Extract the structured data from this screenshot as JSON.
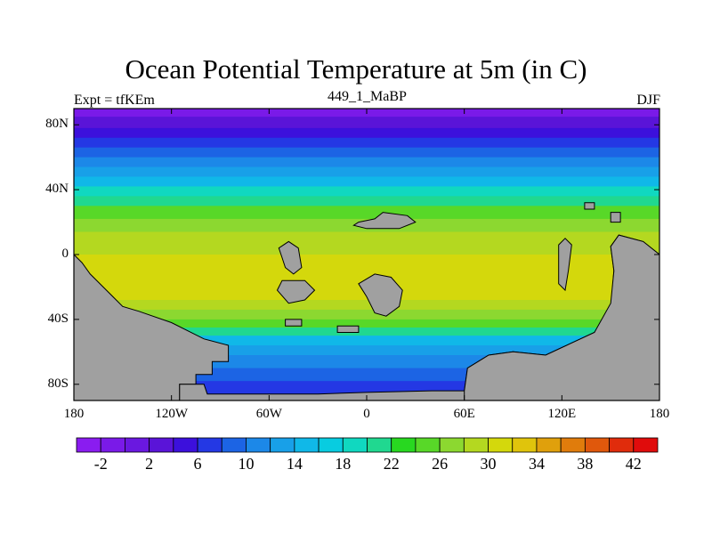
{
  "chart_data": {
    "type": "heatmap",
    "title": "Ocean Potential Temperature at 5m (in C)",
    "left_label": "Expt = tfKEm",
    "center_label": "449_1_MaBP",
    "right_label": "DJF",
    "x_ticks": [
      "180",
      "120W",
      "60W",
      "0",
      "60E",
      "120E",
      "180"
    ],
    "y_ticks": [
      "80N",
      "40N",
      "0",
      "40S",
      "80S"
    ],
    "xlim": [
      -180,
      180
    ],
    "ylim": [
      -90,
      90
    ],
    "colorbar": {
      "labels": [
        "-2",
        "2",
        "6",
        "10",
        "14",
        "18",
        "22",
        "26",
        "30",
        "34",
        "38",
        "42"
      ],
      "colors": [
        "#8a1cf0",
        "#7a1ae8",
        "#6a18e0",
        "#5a14d8",
        "#3c10dc",
        "#2438e4",
        "#1c64e4",
        "#1c88e8",
        "#18a0e8",
        "#10b8e8",
        "#08cce0",
        "#10d8c0",
        "#20d890",
        "#28d820",
        "#58d828",
        "#8cd830",
        "#b4d820",
        "#d4d80c",
        "#e0c40c",
        "#e0a00c",
        "#e07c0c",
        "#e0580c",
        "#e02c0c",
        "#e00c0c"
      ]
    },
    "land_color": "#a0a0a0",
    "latitude_bands": [
      {
        "lat": 90,
        "color": "#7a1ae8"
      },
      {
        "lat": 85,
        "color": "#5a14d8"
      },
      {
        "lat": 78,
        "color": "#3c10dc"
      },
      {
        "lat": 72,
        "color": "#2438e4"
      },
      {
        "lat": 66,
        "color": "#1c64e4"
      },
      {
        "lat": 60,
        "color": "#1c88e8"
      },
      {
        "lat": 54,
        "color": "#18a0e8"
      },
      {
        "lat": 48,
        "color": "#10b8e8"
      },
      {
        "lat": 42,
        "color": "#10d8c0"
      },
      {
        "lat": 36,
        "color": "#20d890"
      },
      {
        "lat": 30,
        "color": "#58d828"
      },
      {
        "lat": 22,
        "color": "#8cd830"
      },
      {
        "lat": 14,
        "color": "#b4d820"
      },
      {
        "lat": 0,
        "color": "#d4d80c"
      },
      {
        "lat": -20,
        "color": "#d4d80c"
      },
      {
        "lat": -28,
        "color": "#b4d820"
      },
      {
        "lat": -34,
        "color": "#8cd830"
      },
      {
        "lat": -40,
        "color": "#58d828"
      },
      {
        "lat": -45,
        "color": "#20d890"
      },
      {
        "lat": -50,
        "color": "#10b8e8"
      },
      {
        "lat": -56,
        "color": "#18a0e8"
      },
      {
        "lat": -62,
        "color": "#1c88e8"
      },
      {
        "lat": -70,
        "color": "#1c64e4"
      },
      {
        "lat": -78,
        "color": "#2438e4"
      }
    ],
    "land_polygons": [
      {
        "name": "land-west-continent",
        "points": [
          [
            -180,
            90
          ],
          [
            -180,
            -90
          ],
          [
            -115,
            -90
          ],
          [
            -115,
            -80
          ],
          [
            -105,
            -80
          ],
          [
            -105,
            -74
          ],
          [
            -95,
            -74
          ],
          [
            -95,
            -66
          ],
          [
            -85,
            -66
          ],
          [
            -85,
            -56
          ],
          [
            -100,
            -52
          ],
          [
            -120,
            -42
          ],
          [
            -140,
            -35
          ],
          [
            -150,
            -32
          ],
          [
            -160,
            -22
          ],
          [
            -170,
            -12
          ],
          [
            -175,
            -5
          ],
          [
            -180,
            0
          ]
        ]
      },
      {
        "name": "land-antarctic-shelf",
        "points": [
          [
            -100,
            -80
          ],
          [
            -98,
            -86
          ],
          [
            -85,
            -86
          ],
          [
            -30,
            -86
          ],
          [
            0,
            -85
          ],
          [
            40,
            -84
          ],
          [
            60,
            -84
          ],
          [
            62,
            -70
          ],
          [
            75,
            -62
          ],
          [
            90,
            -60
          ],
          [
            110,
            -62
          ],
          [
            125,
            -55
          ],
          [
            140,
            -48
          ],
          [
            150,
            -34
          ],
          [
            152,
            -10
          ],
          [
            150,
            5
          ],
          [
            155,
            12
          ],
          [
            170,
            8
          ],
          [
            180,
            0
          ],
          [
            180,
            -90
          ],
          [
            -115,
            -90
          ],
          [
            -115,
            -80
          ]
        ]
      },
      {
        "name": "land-east-continent",
        "points": [
          [
            150,
            -30
          ],
          [
            152,
            -10
          ],
          [
            150,
            5
          ],
          [
            155,
            12
          ],
          [
            170,
            8
          ],
          [
            180,
            0
          ],
          [
            180,
            -90
          ],
          [
            60,
            -90
          ],
          [
            60,
            -84
          ],
          [
            62,
            -70
          ],
          [
            75,
            -62
          ],
          [
            90,
            -60
          ],
          [
            110,
            -62
          ],
          [
            125,
            -55
          ],
          [
            140,
            -48
          ]
        ]
      },
      {
        "name": "land-island-north-atlantic",
        "points": [
          [
            -5,
            20
          ],
          [
            5,
            22
          ],
          [
            10,
            26
          ],
          [
            25,
            24
          ],
          [
            30,
            20
          ],
          [
            20,
            16
          ],
          [
            0,
            16
          ],
          [
            -8,
            18
          ]
        ]
      },
      {
        "name": "land-island-south-atlantic-a",
        "points": [
          [
            -55,
            -22
          ],
          [
            -48,
            -30
          ],
          [
            -38,
            -28
          ],
          [
            -32,
            -22
          ],
          [
            -38,
            -16
          ],
          [
            -52,
            -16
          ]
        ]
      },
      {
        "name": "land-island-south-atlantic-b",
        "points": [
          [
            -50,
            -40
          ],
          [
            -40,
            -40
          ],
          [
            -40,
            -44
          ],
          [
            -50,
            -44
          ]
        ]
      },
      {
        "name": "land-island-central",
        "points": [
          [
            -5,
            -18
          ],
          [
            0,
            -26
          ],
          [
            5,
            -36
          ],
          [
            12,
            -38
          ],
          [
            20,
            -32
          ],
          [
            22,
            -22
          ],
          [
            15,
            -14
          ],
          [
            5,
            -12
          ]
        ]
      },
      {
        "name": "land-island-mid-south",
        "points": [
          [
            -18,
            -44
          ],
          [
            -5,
            -44
          ],
          [
            -5,
            -48
          ],
          [
            -18,
            -48
          ]
        ]
      },
      {
        "name": "land-island-tropical-west",
        "points": [
          [
            -52,
            -2
          ],
          [
            -50,
            -8
          ],
          [
            -45,
            -12
          ],
          [
            -40,
            -8
          ],
          [
            -42,
            4
          ],
          [
            -48,
            8
          ],
          [
            -54,
            4
          ]
        ]
      },
      {
        "name": "land-island-indian",
        "points": [
          [
            118,
            -18
          ],
          [
            122,
            -22
          ],
          [
            124,
            -10
          ],
          [
            126,
            6
          ],
          [
            122,
            10
          ],
          [
            118,
            6
          ]
        ]
      },
      {
        "name": "land-island-east-small",
        "points": [
          [
            134,
            32
          ],
          [
            140,
            32
          ],
          [
            140,
            28
          ],
          [
            134,
            28
          ]
        ]
      },
      {
        "name": "land-island-east-north",
        "points": [
          [
            150,
            26
          ],
          [
            156,
            26
          ],
          [
            156,
            20
          ],
          [
            150,
            20
          ]
        ]
      }
    ]
  }
}
